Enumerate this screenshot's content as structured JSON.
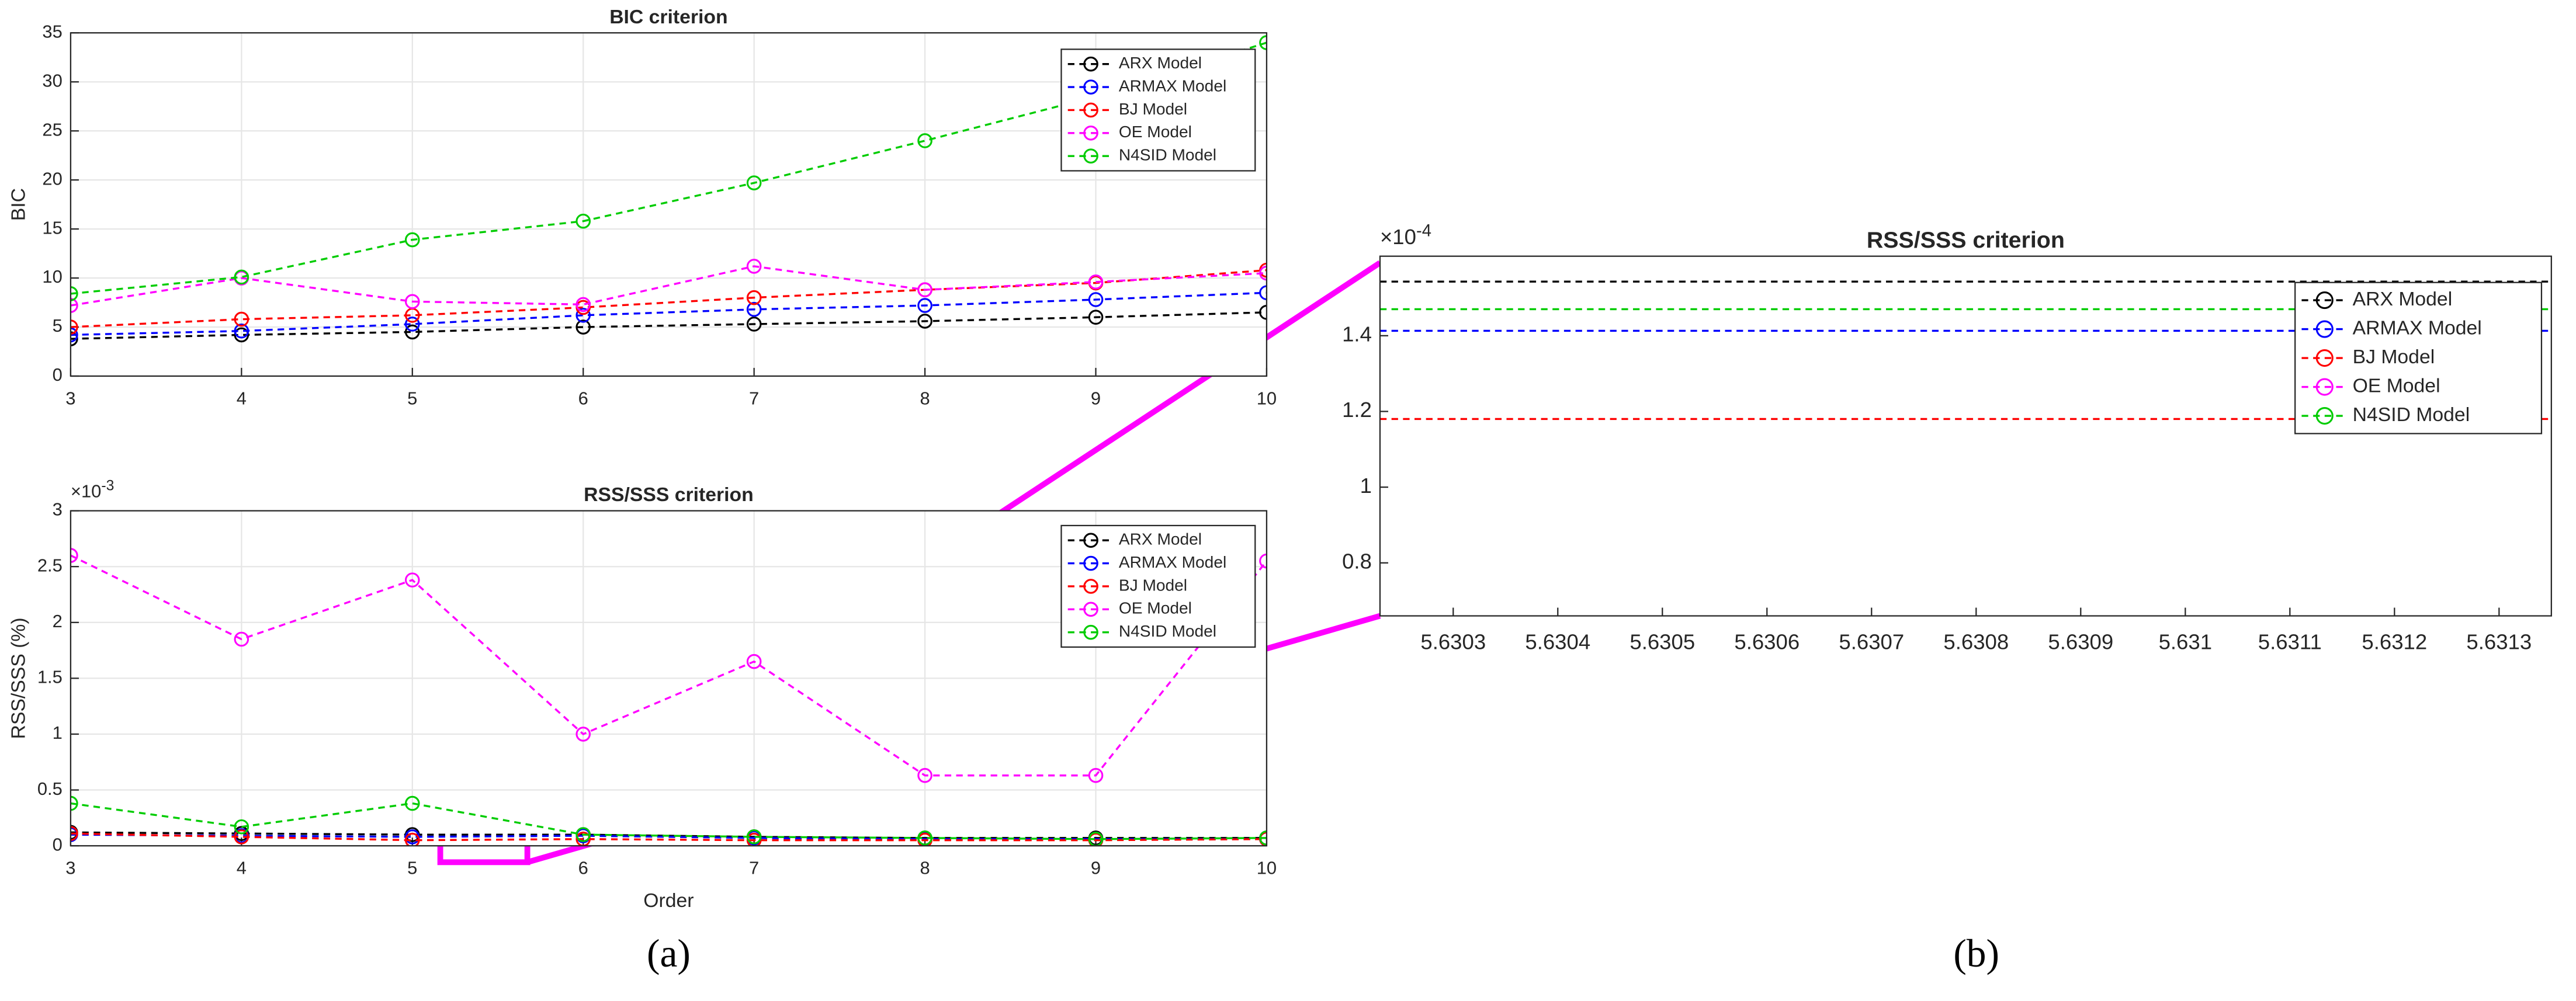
{
  "chart_data": [
    {
      "type": "line",
      "title": "BIC criterion",
      "ylabel": "BIC",
      "x": [
        3,
        4,
        5,
        6,
        7,
        8,
        9,
        10
      ],
      "xlim": [
        3,
        10
      ],
      "xticks": [
        3,
        4,
        5,
        6,
        7,
        8,
        9,
        10
      ],
      "ylim": [
        0,
        35
      ],
      "yticks": [
        0,
        5,
        10,
        15,
        20,
        25,
        30,
        35
      ],
      "grid": true,
      "markers": true,
      "legend": "upper right",
      "series": [
        {
          "name": "ARX Model",
          "color": "#000000",
          "values": [
            3.8,
            4.2,
            4.5,
            5.0,
            5.3,
            5.6,
            6.0,
            6.5
          ]
        },
        {
          "name": "ARMAX Model",
          "color": "#0000ff",
          "values": [
            4.2,
            4.6,
            5.3,
            6.2,
            6.8,
            7.2,
            7.8,
            8.5
          ]
        },
        {
          "name": "BJ Model",
          "color": "#ff0000",
          "values": [
            5.0,
            5.8,
            6.2,
            7.0,
            8.0,
            8.8,
            9.5,
            10.8
          ]
        },
        {
          "name": "OE Model",
          "color": "#ff00ff",
          "values": [
            7.2,
            10.0,
            7.6,
            7.3,
            11.2,
            8.8,
            9.6,
            10.5
          ]
        },
        {
          "name": "N4SID Model",
          "color": "#00cc00",
          "values": [
            8.4,
            10.1,
            13.9,
            15.8,
            19.7,
            24.0,
            28.5,
            34.0
          ]
        }
      ]
    },
    {
      "type": "line",
      "title": "RSS/SSS criterion",
      "xlabel": "Order",
      "ylabel": "RSS/SSS (%)",
      "y_multiplier": {
        "base": "×10",
        "exponent": "-3"
      },
      "x": [
        3,
        4,
        5,
        6,
        7,
        8,
        9,
        10
      ],
      "xlim": [
        3,
        10
      ],
      "xticks": [
        3,
        4,
        5,
        6,
        7,
        8,
        9,
        10
      ],
      "ylim": [
        0,
        3
      ],
      "yticks": [
        0,
        0.5,
        1,
        1.5,
        2,
        2.5,
        3
      ],
      "grid": true,
      "markers": true,
      "legend": "upper right",
      "series": [
        {
          "name": "ARX Model",
          "color": "#000000",
          "values": [
            0.12,
            0.11,
            0.1,
            0.1,
            0.08,
            0.07,
            0.07,
            0.07
          ]
        },
        {
          "name": "ARMAX Model",
          "color": "#0000ff",
          "values": [
            0.1,
            0.09,
            0.08,
            0.09,
            0.07,
            0.06,
            0.06,
            0.06
          ]
        },
        {
          "name": "BJ Model",
          "color": "#ff0000",
          "values": [
            0.11,
            0.08,
            0.05,
            0.06,
            0.05,
            0.05,
            0.05,
            0.06
          ]
        },
        {
          "name": "OE Model",
          "color": "#ff00ff",
          "values": [
            2.6,
            1.85,
            2.38,
            1.0,
            1.65,
            0.63,
            0.63,
            2.55
          ]
        },
        {
          "name": "N4SID Model",
          "color": "#00cc00",
          "values": [
            0.38,
            0.17,
            0.38,
            0.1,
            0.08,
            0.07,
            0.06,
            0.07
          ]
        }
      ]
    },
    {
      "type": "line",
      "title": "RSS/SSS criterion",
      "y_multiplier": {
        "base": "×10",
        "exponent": "-4"
      },
      "x": [
        5.63023,
        5.63135
      ],
      "xlim": [
        5.63023,
        5.63135
      ],
      "xticks": [
        5.6303,
        5.6304,
        5.6305,
        5.6306,
        5.6307,
        5.6308,
        5.6309,
        5.631,
        5.6311,
        5.6312,
        5.6313
      ],
      "ylim": [
        0.66,
        1.61
      ],
      "yticks": [
        0.8,
        1,
        1.2,
        1.4
      ],
      "grid": false,
      "markers": false,
      "legend": "upper right",
      "series": [
        {
          "name": "ARX Model",
          "color": "#000000",
          "values": [
            1.543,
            1.543
          ]
        },
        {
          "name": "ARMAX Model",
          "color": "#0000ff",
          "values": [
            1.413,
            1.413
          ]
        },
        {
          "name": "BJ Model",
          "color": "#ff0000",
          "values": [
            1.18,
            1.18
          ]
        },
        {
          "name": "OE Model",
          "color": "#ff00ff",
          "values": [
            null,
            null
          ]
        },
        {
          "name": "N4SID Model",
          "color": "#00cc00",
          "values": [
            1.47,
            1.47
          ]
        }
      ]
    }
  ],
  "captions": [
    "(a)",
    "(b)"
  ]
}
